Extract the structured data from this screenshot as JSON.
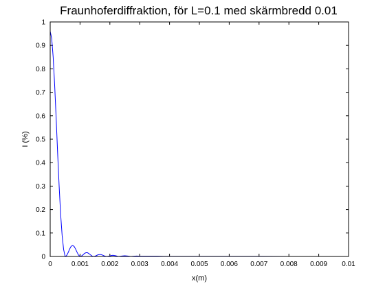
{
  "chart_data": {
    "type": "line",
    "title": "Fraunhoferdiffraktion, för L=0.1 med skärmbredd 0.01",
    "xlabel": "x(m)",
    "ylabel": "I (%)",
    "xlim": [
      0,
      0.01
    ],
    "ylim": [
      0,
      1
    ],
    "xticks": [
      "0",
      "0.001",
      "0.002",
      "0.003",
      "0.004",
      "0.005",
      "0.006",
      "0.007",
      "0.008",
      "0.009",
      "0.01"
    ],
    "yticks": [
      "0",
      "0.1",
      "0.2",
      "0.3",
      "0.4",
      "0.5",
      "0.6",
      "0.7",
      "0.8",
      "0.9",
      "1"
    ],
    "grid": false,
    "legend": "none",
    "line_color": "#0000ff",
    "series": [
      {
        "x": [
          0,
          5e-05,
          0.0001,
          0.00015,
          0.0002,
          0.00025,
          0.0003,
          0.00035,
          0.0004,
          0.00045,
          0.0005,
          0.00055,
          0.0006,
          0.00065,
          0.0007,
          0.00075,
          0.0008,
          0.00085,
          0.0009,
          0.00095,
          0.001,
          0.00105,
          0.0011,
          0.00115,
          0.0012,
          0.00125,
          0.0013,
          0.00135,
          0.0014,
          0.00145,
          0.0015,
          0.00155,
          0.0016,
          0.00165,
          0.0017,
          0.00175,
          0.0018,
          0.00185,
          0.0019,
          0.00195,
          0.002,
          0.00205,
          0.0021,
          0.00215,
          0.0022,
          0.00225,
          0.0023,
          0.0024,
          0.0025,
          0.0026,
          0.0027,
          0.0028,
          0.0029,
          0.003,
          0.0032,
          0.0034,
          0.0036,
          0.0038,
          0.004,
          0.0045,
          0.005,
          0.006,
          0.007,
          0.008,
          0.009,
          0.01
        ],
        "y": [
          0.96,
          0.93,
          0.85,
          0.73,
          0.59,
          0.44,
          0.3,
          0.18,
          0.09,
          0.03,
          0.0,
          0.004,
          0.016,
          0.031,
          0.043,
          0.047,
          0.043,
          0.032,
          0.018,
          0.006,
          0.0,
          0.002,
          0.007,
          0.013,
          0.016,
          0.016,
          0.012,
          0.007,
          0.002,
          0.0,
          0.001,
          0.004,
          0.007,
          0.008,
          0.008,
          0.006,
          0.003,
          0.001,
          0.0,
          0.001,
          0.002,
          0.004,
          0.005,
          0.004,
          0.003,
          0.001,
          0.0,
          0.002,
          0.003,
          0.002,
          0.0,
          0.001,
          0.002,
          0.001,
          0.001,
          0.001,
          0.001,
          0.0005,
          0.0005,
          0.0004,
          0.0003,
          0.0002,
          0.0002,
          0.0001,
          0.0001,
          0.0001
        ]
      }
    ]
  }
}
